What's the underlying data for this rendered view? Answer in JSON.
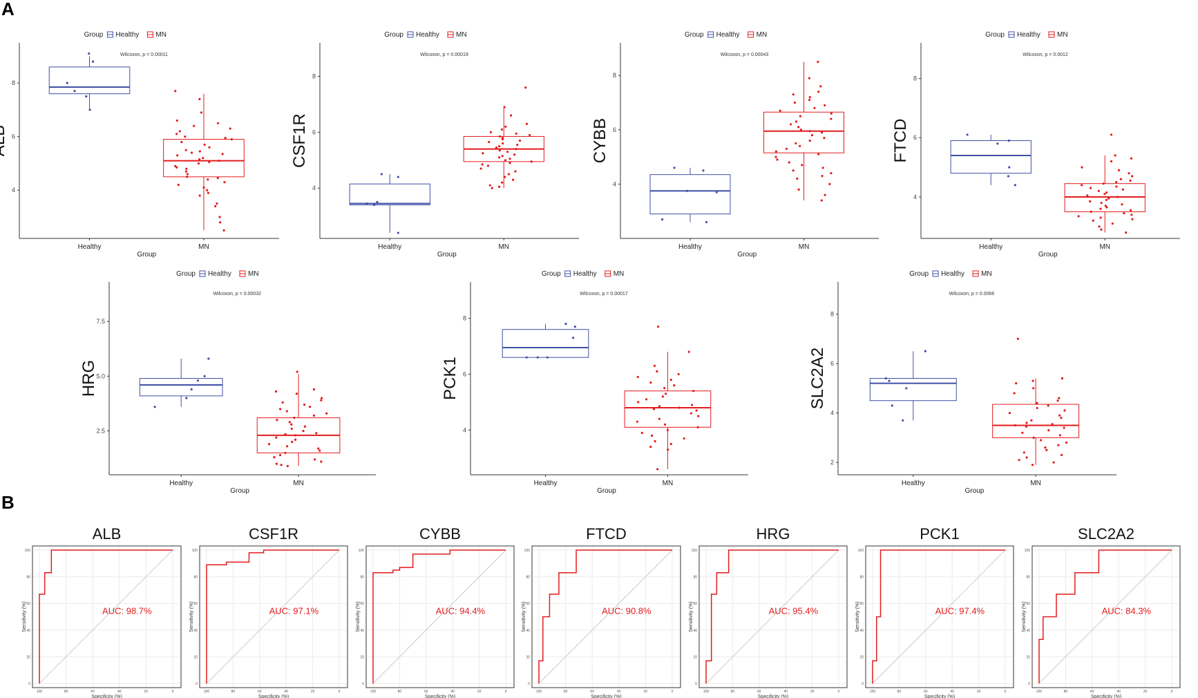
{
  "panel_labels": {
    "a": "A",
    "b": "B"
  },
  "colors": {
    "healthy": "#3f4fa6",
    "mn": "#e31a1c",
    "diag": "#cccccc"
  },
  "legend": {
    "title": "Group",
    "healthy": "Healthy",
    "mn": "MN"
  },
  "x_title": "Group",
  "categories": [
    "Healthy",
    "MN"
  ],
  "roc_axes": {
    "x": "Specificity (%)",
    "y": "Sensitivity (%)",
    "x_ticks": [
      "100",
      "80",
      "60",
      "40",
      "20",
      "0"
    ],
    "y_ticks": [
      "0",
      "20",
      "40",
      "60",
      "80",
      "100"
    ]
  },
  "chart_data": [
    {
      "type": "box",
      "gene": "ALB",
      "stat": "Wilcoxon, p = 0.00011",
      "ylim": [
        2.2,
        9.5
      ],
      "yticks": [
        4,
        6,
        8
      ],
      "yticklabels": [
        "4",
        "6",
        "8"
      ],
      "healthy": {
        "q1": 7.6,
        "median": 7.85,
        "q3": 8.6,
        "min": 7.0,
        "max": 9.0,
        "points": [
          9.1,
          8.8,
          8.0,
          7.7,
          7.5,
          7.0
        ]
      },
      "mn": {
        "q1": 4.5,
        "median": 5.1,
        "q3": 5.9,
        "min": 2.5,
        "max": 7.6,
        "points": [
          7.7,
          7.4,
          6.9,
          6.6,
          6.5,
          6.4,
          6.3,
          6.2,
          6.1,
          6.0,
          5.95,
          5.9,
          5.8,
          5.7,
          5.6,
          5.5,
          5.45,
          5.4,
          5.35,
          5.3,
          5.2,
          5.15,
          5.1,
          5.05,
          5.0,
          4.9,
          4.85,
          4.8,
          4.7,
          4.6,
          4.5,
          4.45,
          4.4,
          4.3,
          4.2,
          4.1,
          4.0,
          3.9,
          3.8,
          3.5,
          3.4,
          3.0,
          2.8,
          2.5
        ]
      }
    },
    {
      "type": "box",
      "gene": "CSF1R",
      "stat": "Wilcoxon, p = 0.00019",
      "ylim": [
        2.2,
        9.2
      ],
      "yticks": [
        4,
        6,
        8
      ],
      "yticklabels": [
        "4",
        "6",
        "8"
      ],
      "healthy": {
        "q1": 3.4,
        "median": 3.45,
        "q3": 4.15,
        "min": 2.4,
        "max": 4.5,
        "points": [
          4.5,
          4.4,
          3.5,
          3.45,
          3.4,
          2.4
        ]
      },
      "mn": {
        "q1": 4.95,
        "median": 5.4,
        "q3": 5.85,
        "min": 4.0,
        "max": 6.9,
        "points": [
          7.6,
          6.9,
          6.6,
          6.3,
          6.2,
          6.1,
          6.0,
          5.95,
          5.9,
          5.85,
          5.8,
          5.75,
          5.7,
          5.65,
          5.6,
          5.55,
          5.5,
          5.45,
          5.4,
          5.35,
          5.3,
          5.25,
          5.2,
          5.15,
          5.1,
          5.05,
          5.0,
          4.95,
          4.9,
          4.85,
          4.8,
          4.7,
          4.6,
          4.5,
          4.4,
          4.3,
          4.2,
          4.1,
          4.05,
          4.0
        ]
      }
    },
    {
      "type": "box",
      "gene": "CYBB",
      "stat": "Wilcoxon, p = 0.00043",
      "ylim": [
        2.0,
        9.2
      ],
      "yticks": [
        4,
        6,
        8
      ],
      "yticklabels": [
        "4",
        "6",
        "8"
      ],
      "healthy": {
        "q1": 2.9,
        "median": 3.75,
        "q3": 4.35,
        "min": 2.6,
        "max": 4.6,
        "points": [
          4.6,
          4.5,
          3.75,
          3.7,
          2.7,
          2.6
        ]
      },
      "mn": {
        "q1": 5.15,
        "median": 5.95,
        "q3": 6.65,
        "min": 3.4,
        "max": 8.5,
        "points": [
          8.5,
          7.9,
          7.6,
          7.4,
          7.3,
          7.2,
          7.1,
          7.0,
          6.9,
          6.8,
          6.7,
          6.6,
          6.5,
          6.4,
          6.3,
          6.2,
          6.1,
          6.0,
          5.95,
          5.9,
          5.8,
          5.7,
          5.6,
          5.5,
          5.4,
          5.3,
          5.2,
          5.1,
          5.0,
          4.9,
          4.8,
          4.7,
          4.6,
          4.5,
          4.4,
          4.3,
          4.2,
          4.0,
          3.8,
          3.6,
          3.4
        ]
      }
    },
    {
      "type": "box",
      "gene": "FTCD",
      "stat": "Wilcoxon, p = 0.0012",
      "ylim": [
        2.6,
        9.2
      ],
      "yticks": [
        4,
        6,
        8
      ],
      "yticklabels": [
        "4",
        "6",
        "8"
      ],
      "healthy": {
        "q1": 4.8,
        "median": 5.4,
        "q3": 5.9,
        "min": 4.4,
        "max": 6.1,
        "points": [
          6.1,
          5.9,
          5.8,
          5.0,
          4.7,
          4.4
        ]
      },
      "mn": {
        "q1": 3.5,
        "median": 4.0,
        "q3": 4.45,
        "min": 2.8,
        "max": 5.4,
        "points": [
          6.1,
          5.4,
          5.3,
          5.2,
          5.0,
          4.9,
          4.8,
          4.7,
          4.6,
          4.55,
          4.5,
          4.45,
          4.4,
          4.35,
          4.3,
          4.25,
          4.2,
          4.15,
          4.1,
          4.05,
          4.0,
          3.95,
          3.9,
          3.85,
          3.8,
          3.75,
          3.7,
          3.65,
          3.6,
          3.55,
          3.5,
          3.45,
          3.4,
          3.35,
          3.3,
          3.25,
          3.2,
          3.1,
          3.0,
          2.9,
          2.8
        ]
      }
    },
    {
      "type": "box",
      "gene": "HRG",
      "stat": "Wilcoxon, p = 0.00032",
      "ylim": [
        0.5,
        9.3
      ],
      "yticks": [
        2.5,
        5.0,
        7.5
      ],
      "yticklabels": [
        "2.5",
        "5.0",
        "7.5"
      ],
      "healthy": {
        "q1": 4.1,
        "median": 4.6,
        "q3": 4.9,
        "min": 3.6,
        "max": 5.8,
        "points": [
          5.8,
          5.0,
          4.8,
          4.4,
          4.0,
          3.6
        ]
      },
      "mn": {
        "q1": 1.5,
        "median": 2.3,
        "q3": 3.1,
        "min": 0.9,
        "max": 5.1,
        "points": [
          5.2,
          4.4,
          4.3,
          4.2,
          4.0,
          3.9,
          3.8,
          3.7,
          3.6,
          3.5,
          3.4,
          3.3,
          3.2,
          3.1,
          3.0,
          2.9,
          2.8,
          2.7,
          2.6,
          2.5,
          2.4,
          2.35,
          2.3,
          2.2,
          2.1,
          2.0,
          1.9,
          1.8,
          1.7,
          1.6,
          1.5,
          1.4,
          1.3,
          1.2,
          1.1,
          1.0,
          0.95,
          0.9
        ]
      }
    },
    {
      "type": "box",
      "gene": "PCK1",
      "stat": "Wilcoxon, p = 0.00017",
      "ylim": [
        2.4,
        9.3
      ],
      "yticks": [
        4,
        6,
        8
      ],
      "yticklabels": [
        "4",
        "6",
        "8"
      ],
      "healthy": {
        "q1": 6.6,
        "median": 6.95,
        "q3": 7.6,
        "min": 6.6,
        "max": 7.8,
        "points": [
          7.8,
          7.7,
          7.3,
          6.6,
          6.6,
          6.6
        ]
      },
      "mn": {
        "q1": 4.1,
        "median": 4.8,
        "q3": 5.4,
        "min": 2.6,
        "max": 6.8,
        "points": [
          7.7,
          6.8,
          6.3,
          6.1,
          6.0,
          5.9,
          5.8,
          5.7,
          5.6,
          5.5,
          5.4,
          5.3,
          5.2,
          5.1,
          5.0,
          4.9,
          4.85,
          4.8,
          4.75,
          4.7,
          4.6,
          4.5,
          4.4,
          4.3,
          4.2,
          4.1,
          4.0,
          3.9,
          3.8,
          3.7,
          3.6,
          3.5,
          3.4,
          3.3,
          2.6
        ]
      }
    },
    {
      "type": "box",
      "gene": "SLC2A2",
      "stat": "Wilcoxon, p = 0.0066",
      "ylim": [
        1.5,
        9.3
      ],
      "yticks": [
        2,
        4,
        6,
        8
      ],
      "yticklabels": [
        "2",
        "4",
        "6",
        "8"
      ],
      "healthy": {
        "q1": 4.5,
        "median": 5.2,
        "q3": 5.4,
        "min": 3.7,
        "max": 6.5,
        "points": [
          6.5,
          5.4,
          5.3,
          5.0,
          4.3,
          3.7
        ]
      },
      "mn": {
        "q1": 3.0,
        "median": 3.5,
        "q3": 4.35,
        "min": 1.9,
        "max": 5.4,
        "points": [
          7.0,
          5.4,
          5.3,
          5.2,
          5.0,
          4.8,
          4.6,
          4.5,
          4.4,
          4.3,
          4.2,
          4.1,
          4.0,
          3.9,
          3.8,
          3.7,
          3.6,
          3.55,
          3.5,
          3.45,
          3.4,
          3.3,
          3.2,
          3.1,
          3.0,
          2.9,
          2.8,
          2.7,
          2.6,
          2.5,
          2.4,
          2.3,
          2.2,
          2.1,
          2.0,
          1.9
        ]
      }
    },
    {
      "type": "roc",
      "gene": "ALB",
      "auc": "AUC: 98.7%",
      "curve": [
        [
          100,
          0
        ],
        [
          100,
          67
        ],
        [
          96,
          67
        ],
        [
          96,
          83
        ],
        [
          91,
          83
        ],
        [
          91,
          100
        ],
        [
          0,
          100
        ]
      ]
    },
    {
      "type": "roc",
      "gene": "CSF1R",
      "auc": "AUC: 97.1%",
      "curve": [
        [
          100,
          0
        ],
        [
          100,
          89
        ],
        [
          85,
          89
        ],
        [
          85,
          91
        ],
        [
          68,
          91
        ],
        [
          68,
          98
        ],
        [
          57,
          98
        ],
        [
          57,
          100
        ],
        [
          0,
          100
        ]
      ]
    },
    {
      "type": "roc",
      "gene": "CYBB",
      "auc": "AUC: 94.4%",
      "curve": [
        [
          100,
          0
        ],
        [
          100,
          83
        ],
        [
          85,
          83
        ],
        [
          85,
          85
        ],
        [
          80,
          85
        ],
        [
          80,
          87
        ],
        [
          70,
          87
        ],
        [
          70,
          97
        ],
        [
          42,
          97
        ],
        [
          42,
          100
        ],
        [
          0,
          100
        ]
      ]
    },
    {
      "type": "roc",
      "gene": "FTCD",
      "auc": "AUC: 90.8%",
      "curve": [
        [
          100,
          0
        ],
        [
          100,
          17
        ],
        [
          97,
          17
        ],
        [
          97,
          50
        ],
        [
          92,
          50
        ],
        [
          92,
          67
        ],
        [
          85,
          67
        ],
        [
          85,
          83
        ],
        [
          72,
          83
        ],
        [
          72,
          100
        ],
        [
          0,
          100
        ]
      ]
    },
    {
      "type": "roc",
      "gene": "HRG",
      "auc": "AUC: 95.4%",
      "curve": [
        [
          100,
          0
        ],
        [
          100,
          17
        ],
        [
          96,
          17
        ],
        [
          96,
          67
        ],
        [
          92,
          67
        ],
        [
          92,
          83
        ],
        [
          83,
          83
        ],
        [
          83,
          100
        ],
        [
          0,
          100
        ]
      ]
    },
    {
      "type": "roc",
      "gene": "PCK1",
      "auc": "AUC: 97.4%",
      "curve": [
        [
          100,
          0
        ],
        [
          100,
          17
        ],
        [
          97,
          17
        ],
        [
          97,
          50
        ],
        [
          94,
          50
        ],
        [
          94,
          100
        ],
        [
          0,
          100
        ]
      ]
    },
    {
      "type": "roc",
      "gene": "SLC2A2",
      "auc": "AUC: 84.3%",
      "curve": [
        [
          100,
          0
        ],
        [
          100,
          33
        ],
        [
          97,
          33
        ],
        [
          97,
          50
        ],
        [
          87,
          50
        ],
        [
          87,
          67
        ],
        [
          73,
          67
        ],
        [
          73,
          83
        ],
        [
          55,
          83
        ],
        [
          55,
          100
        ],
        [
          0,
          100
        ]
      ]
    }
  ]
}
